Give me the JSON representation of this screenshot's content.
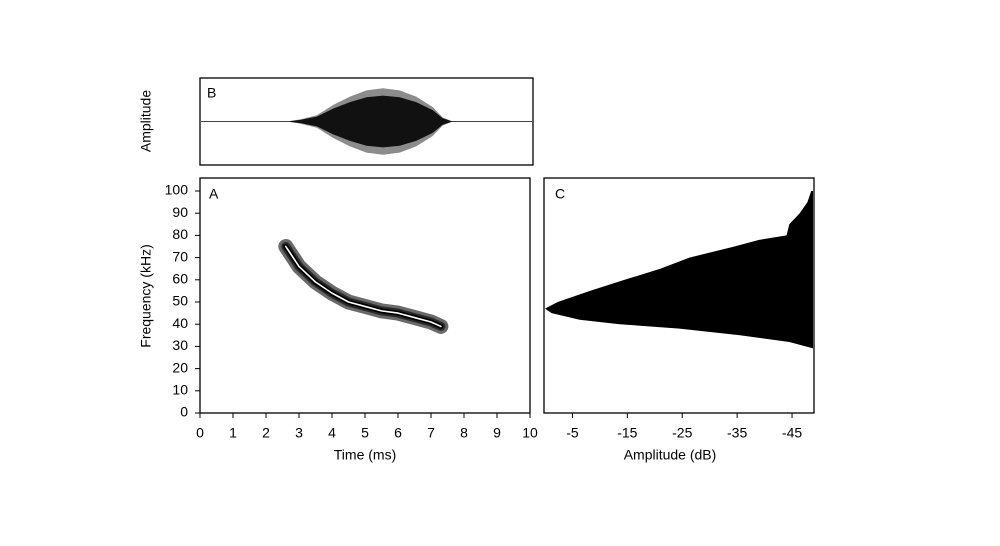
{
  "chart_data": [
    {
      "type": "waveform",
      "panel_label": "B",
      "y_label": "Amplitude",
      "x": [
        2.6,
        3.0,
        3.5,
        4.0,
        4.5,
        5.0,
        5.5,
        6.0,
        6.5,
        7.0,
        7.3,
        7.6
      ],
      "values": [
        0.0,
        0.05,
        0.15,
        0.4,
        0.6,
        0.75,
        0.8,
        0.75,
        0.6,
        0.35,
        0.1,
        0.0
      ],
      "xlim": [
        0,
        10
      ],
      "ylim": [
        -1,
        1
      ],
      "color": "#8c8c8c"
    },
    {
      "type": "spectrogram",
      "panel_label": "A",
      "x_label": "Time (ms)",
      "y_label": "Frequency (kHz)",
      "x": [
        2.6,
        3.0,
        3.5,
        4.0,
        4.5,
        5.0,
        5.5,
        6.0,
        6.5,
        7.0,
        7.3
      ],
      "values": [
        75,
        66,
        59,
        54,
        50,
        48,
        46,
        45,
        43,
        41,
        39
      ],
      "xlim": [
        0,
        10
      ],
      "xticks": [
        0,
        1,
        2,
        3,
        4,
        5,
        6,
        7,
        8,
        9,
        10
      ],
      "ylim": [
        0,
        100
      ],
      "yticks": [
        0,
        10,
        20,
        30,
        40,
        50,
        60,
        70,
        80,
        90,
        100
      ]
    },
    {
      "type": "spectrum",
      "panel_label": "C",
      "x_label": "Amplitude (dB)",
      "frequency": [
        100,
        95,
        90,
        85,
        80,
        78,
        75,
        70,
        65,
        60,
        55,
        50,
        47,
        45,
        42,
        40,
        38,
        35,
        32,
        29
      ],
      "values": [
        -48.5,
        -47.8,
        -46.4,
        -44.5,
        -44,
        -39,
        -34.5,
        -26.3,
        -21,
        -14.5,
        -8.2,
        -2.3,
        0,
        -1.2,
        -6.3,
        -13.6,
        -24.5,
        -35.5,
        -44.5,
        -49
      ],
      "xlim": [
        0,
        -49
      ],
      "xticks": [
        -5,
        -15,
        -25,
        -35,
        -45
      ],
      "ylim": [
        0,
        100
      ],
      "color": "#000000"
    }
  ]
}
